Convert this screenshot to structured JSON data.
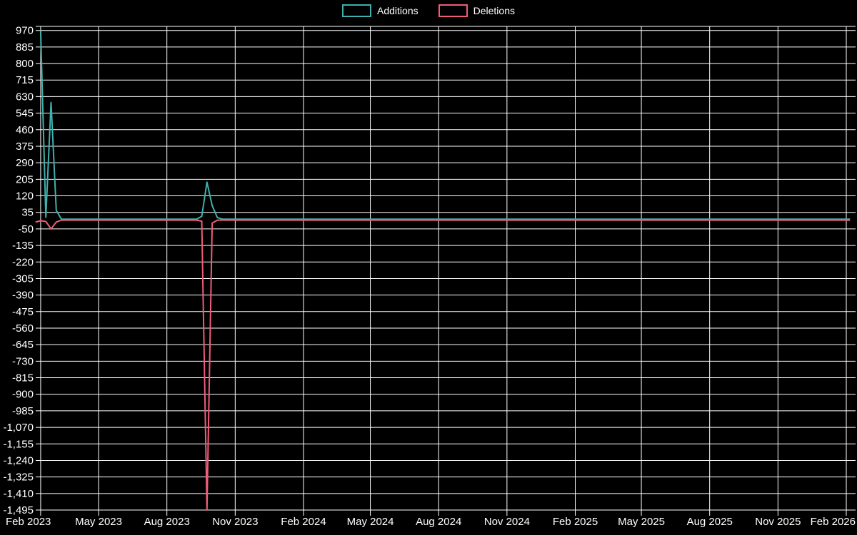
{
  "chart_data": {
    "type": "line",
    "title": "",
    "xlabel": "",
    "ylabel": "",
    "background_color": "#000000",
    "grid": true,
    "grid_color": "#ffffff",
    "text_color": "#ffffff",
    "legend_position": "top-center",
    "x_range": [
      "2023-02-01",
      "2026-02-08"
    ],
    "ylim": [
      -1495,
      970
    ],
    "y_tick_step": 85,
    "y_ticks": [
      {
        "value": 970,
        "label": "970"
      },
      {
        "value": 885,
        "label": "885"
      },
      {
        "value": 800,
        "label": "800"
      },
      {
        "value": 715,
        "label": "715"
      },
      {
        "value": 630,
        "label": "630"
      },
      {
        "value": 545,
        "label": "545"
      },
      {
        "value": 460,
        "label": "460"
      },
      {
        "value": 375,
        "label": "375"
      },
      {
        "value": 290,
        "label": "290"
      },
      {
        "value": 205,
        "label": "205"
      },
      {
        "value": 120,
        "label": "120"
      },
      {
        "value": 35,
        "label": "35"
      },
      {
        "value": -50,
        "label": "-50"
      },
      {
        "value": -135,
        "label": "-135"
      },
      {
        "value": -220,
        "label": "-220"
      },
      {
        "value": -305,
        "label": "-305"
      },
      {
        "value": -390,
        "label": "-390"
      },
      {
        "value": -475,
        "label": "-475"
      },
      {
        "value": -560,
        "label": "-560"
      },
      {
        "value": -645,
        "label": "-645"
      },
      {
        "value": -730,
        "label": "-730"
      },
      {
        "value": -815,
        "label": "-815"
      },
      {
        "value": -900,
        "label": "-900"
      },
      {
        "value": -985,
        "label": "-985"
      },
      {
        "value": -1070,
        "label": "-1,070"
      },
      {
        "value": -1155,
        "label": "-1,155"
      },
      {
        "value": -1240,
        "label": "-1,240"
      },
      {
        "value": -1325,
        "label": "-1,325"
      },
      {
        "value": -1410,
        "label": "-1,410"
      },
      {
        "value": -1495,
        "label": "-1,495"
      }
    ],
    "x_ticks": [
      {
        "date": "2023-02-12",
        "label": "Feb 2023"
      },
      {
        "date": "2023-05-01",
        "label": "May 2023"
      },
      {
        "date": "2023-08-01",
        "label": "Aug 2023"
      },
      {
        "date": "2023-11-01",
        "label": "Nov 2023"
      },
      {
        "date": "2024-02-01",
        "label": "Feb 2024"
      },
      {
        "date": "2024-05-01",
        "label": "May 2024"
      },
      {
        "date": "2024-08-01",
        "label": "Aug 2024"
      },
      {
        "date": "2024-11-01",
        "label": "Nov 2024"
      },
      {
        "date": "2025-02-01",
        "label": "Feb 2025"
      },
      {
        "date": "2025-05-01",
        "label": "May 2025"
      },
      {
        "date": "2025-08-01",
        "label": "Aug 2025"
      },
      {
        "date": "2025-11-01",
        "label": "Nov 2025"
      },
      {
        "date": "2026-02-01",
        "label": "Feb 2026"
      }
    ],
    "series": [
      {
        "name": "Additions",
        "color": "#3fb1ae",
        "points": [
          [
            "2023-02-12",
            970
          ],
          [
            "2023-02-19",
            10
          ],
          [
            "2023-02-26",
            600
          ],
          [
            "2023-03-05",
            45
          ],
          [
            "2023-03-12",
            0
          ],
          [
            "2023-09-10",
            0
          ],
          [
            "2023-09-17",
            15
          ],
          [
            "2023-09-24",
            190
          ],
          [
            "2023-10-01",
            70
          ],
          [
            "2023-10-08",
            8
          ],
          [
            "2023-10-15",
            0
          ],
          [
            "2026-02-06",
            0
          ]
        ]
      },
      {
        "name": "Deletions",
        "color": "#ef5d7b",
        "points": [
          [
            "2023-02-05",
            -15
          ],
          [
            "2023-02-12",
            -8
          ],
          [
            "2023-02-19",
            -12
          ],
          [
            "2023-02-26",
            -50
          ],
          [
            "2023-03-05",
            -15
          ],
          [
            "2023-03-12",
            -5
          ],
          [
            "2023-09-10",
            -5
          ],
          [
            "2023-09-17",
            -10
          ],
          [
            "2023-09-24",
            -1495
          ],
          [
            "2023-10-01",
            -20
          ],
          [
            "2023-10-08",
            -5
          ],
          [
            "2026-02-06",
            -5
          ]
        ]
      }
    ]
  }
}
